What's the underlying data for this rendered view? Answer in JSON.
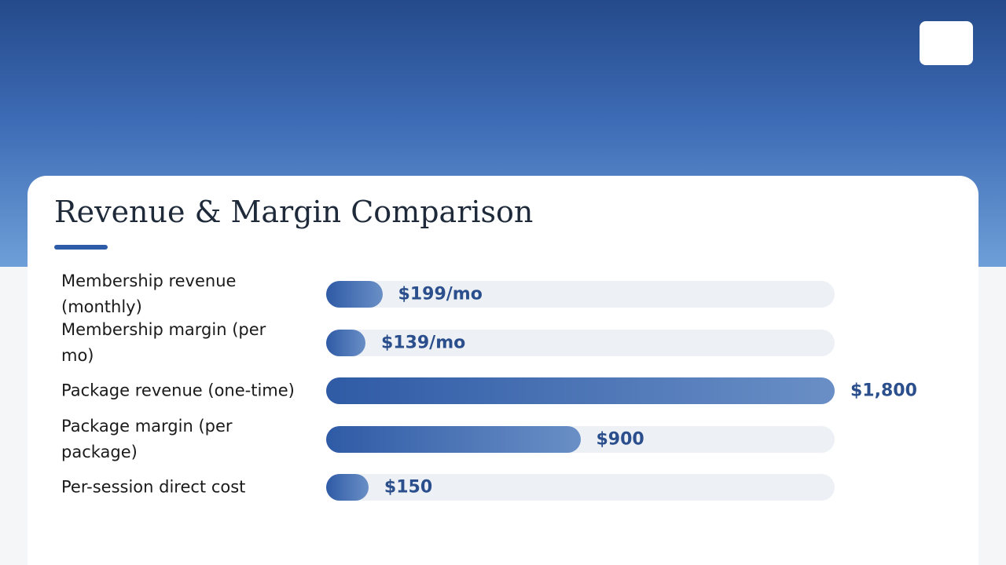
{
  "chart_data": {
    "type": "bar",
    "orientation": "horizontal",
    "title": "Revenue & Margin Comparison",
    "categories": [
      "Membership revenue (monthly)",
      "Membership margin (per mo)",
      "Package revenue (one-time)",
      "Package margin (per package)",
      "Per-session direct cost"
    ],
    "values": [
      199,
      139,
      1800,
      900,
      150
    ],
    "value_labels": [
      "$199/mo",
      "$139/mo",
      "$1,800",
      "$900",
      "$150"
    ],
    "xlim": [
      0,
      1800
    ],
    "color": "#2f5ba6"
  }
}
